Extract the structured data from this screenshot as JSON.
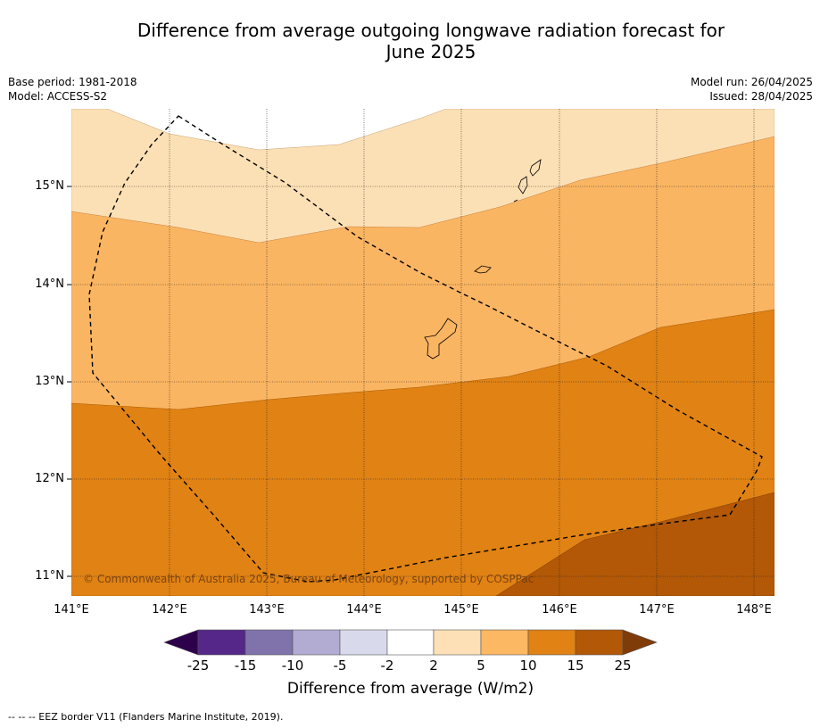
{
  "header": {
    "title_line1": "Difference from average outgoing longwave radiation forecast for",
    "title_line2": "June 2025",
    "base_period": "Base period: 1981-2018",
    "model": "Model: ACCESS-S2",
    "model_run": "Model run: 26/04/2025",
    "issued": "Issued: 28/04/2025"
  },
  "map": {
    "lat_ticks": [
      "15°N",
      "14°N",
      "13°N",
      "12°N",
      "11°N"
    ],
    "lon_ticks": [
      "141°E",
      "142°E",
      "143°E",
      "144°E",
      "145°E",
      "146°E",
      "147°E",
      "148°E"
    ],
    "copyright": "© Commonwealth of Australia 2025, Bureau of Meteorology, supported by COSPPac",
    "colors": {
      "2_to_5": "#fce0b5",
      "5_to_10": "#fab562",
      "10_to_15": "#e08214",
      "15_to_25": "#b25806"
    }
  },
  "colorbar": {
    "title": "Difference from average (W/m2)",
    "tick_labels": [
      "-25",
      "-15",
      "-10",
      "-5",
      "-2",
      "2",
      "5",
      "10",
      "15",
      "25"
    ],
    "segment_colors": [
      "#542788",
      "#8073ac",
      "#b2abd2",
      "#d8daeb",
      "#ffffff",
      "#fee0b6",
      "#fdb863",
      "#e08214",
      "#b35806"
    ],
    "low_extend_color": "#2d004b",
    "high_extend_color": "#7f3b08"
  },
  "footnote": "--  --  -- EEZ border V11 (Flanders Marine Institute, 2019)."
}
